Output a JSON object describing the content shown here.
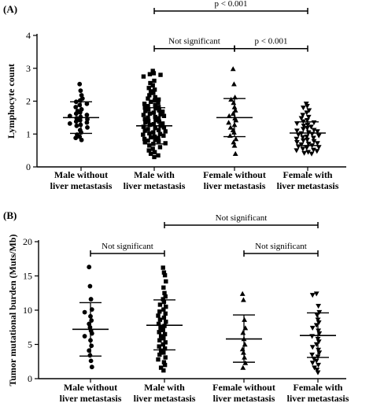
{
  "chart_data": [
    {
      "type": "scatter",
      "panel_label": "(A)",
      "ylabel": "Lymphocyte count",
      "ylim": [
        0,
        4
      ],
      "yticks": [
        0,
        1,
        2,
        3,
        4
      ],
      "grid": false,
      "categories": [
        [
          "Male without",
          "liver metastasis"
        ],
        [
          "Male with",
          "liver metastasis"
        ],
        [
          "Female without",
          "liver metastasis"
        ],
        [
          "Female with",
          "liver metastasis"
        ]
      ],
      "markers": [
        "circle",
        "square",
        "triangle-up",
        "triangle-down"
      ],
      "summary": [
        {
          "mean": 1.5,
          "sd_low": 1.02,
          "sd_high": 1.98
        },
        {
          "mean": 1.25,
          "sd_low": 0.7,
          "sd_high": 1.8
        },
        {
          "mean": 1.5,
          "sd_low": 0.92,
          "sd_high": 2.08
        },
        {
          "mean": 1.03,
          "sd_low": 0.65,
          "sd_high": 1.37
        }
      ],
      "series": [
        {
          "values": [
            2.52,
            2.32,
            2.18,
            2.08,
            2.02,
            1.98,
            1.92,
            1.88,
            1.82,
            1.75,
            1.7,
            1.66,
            1.62,
            1.58,
            1.55,
            1.52,
            1.48,
            1.45,
            1.42,
            1.38,
            1.35,
            1.32,
            1.28,
            1.25,
            1.2,
            1.12,
            1.05,
            0.98,
            0.92,
            0.88,
            0.82
          ]
        },
        {
          "values": [
            2.92,
            2.85,
            2.82,
            2.8,
            2.75,
            2.62,
            2.55,
            2.48,
            2.4,
            2.35,
            2.3,
            2.25,
            2.18,
            2.12,
            2.08,
            2.05,
            2.02,
            1.98,
            1.95,
            1.92,
            1.88,
            1.85,
            1.82,
            1.8,
            1.78,
            1.75,
            1.72,
            1.7,
            1.68,
            1.65,
            1.62,
            1.6,
            1.58,
            1.55,
            1.52,
            1.5,
            1.48,
            1.45,
            1.42,
            1.4,
            1.38,
            1.35,
            1.32,
            1.3,
            1.28,
            1.25,
            1.22,
            1.2,
            1.18,
            1.15,
            1.12,
            1.1,
            1.08,
            1.05,
            1.02,
            1.0,
            0.98,
            0.95,
            0.92,
            0.9,
            0.88,
            0.85,
            0.82,
            0.8,
            0.78,
            0.75,
            0.72,
            0.7,
            0.65,
            0.6,
            0.55,
            0.5,
            0.45,
            0.4,
            0.35,
            0.3
          ]
        },
        {
          "values": [
            2.98,
            2.52,
            2.12,
            2.05,
            1.95,
            1.82,
            1.72,
            1.62,
            1.55,
            1.48,
            1.42,
            1.35,
            1.28,
            1.2,
            1.12,
            1.05,
            0.95,
            0.85,
            0.75,
            0.65,
            0.4
          ]
        },
        {
          "values": [
            1.92,
            1.85,
            1.8,
            1.72,
            1.65,
            1.58,
            1.52,
            1.48,
            1.42,
            1.38,
            1.35,
            1.32,
            1.28,
            1.25,
            1.22,
            1.18,
            1.15,
            1.12,
            1.1,
            1.08,
            1.05,
            1.02,
            1.0,
            0.98,
            0.95,
            0.92,
            0.9,
            0.88,
            0.85,
            0.82,
            0.8,
            0.78,
            0.75,
            0.72,
            0.7,
            0.68,
            0.65,
            0.62,
            0.6,
            0.58,
            0.55,
            0.52,
            0.5,
            0.48,
            0.45,
            0.42,
            0.4
          ]
        }
      ],
      "annotations": [
        {
          "from": 2,
          "to": 3,
          "level": 3.6,
          "text": "Not significant"
        },
        {
          "from": 3,
          "to": 4,
          "level": 3.6,
          "text": "p < 0.001"
        },
        {
          "from": 2,
          "to": 4,
          "level": 4.3,
          "text": "p < 0.001"
        }
      ]
    },
    {
      "type": "scatter",
      "panel_label": "(B)",
      "ylabel": "Tumor mutational burden (Muts/Mb)",
      "ylim": [
        0,
        20
      ],
      "yticks": [
        0,
        5,
        10,
        15,
        20
      ],
      "grid": false,
      "categories": [
        [
          "Male without",
          "liver metastasis"
        ],
        [
          "Male with",
          "liver metastasis"
        ],
        [
          "Female without",
          "liver metastasis"
        ],
        [
          "Female with",
          "liver metastasis"
        ]
      ],
      "markers": [
        "circle",
        "square",
        "triangle-up",
        "triangle-down"
      ],
      "summary": [
        {
          "mean": 7.2,
          "sd_low": 3.3,
          "sd_high": 11.1
        },
        {
          "mean": 7.8,
          "sd_low": 4.2,
          "sd_high": 11.5
        },
        {
          "mean": 5.8,
          "sd_low": 2.4,
          "sd_high": 9.3
        },
        {
          "mean": 6.3,
          "sd_low": 3.1,
          "sd_high": 9.6
        }
      ],
      "series": [
        {
          "values": [
            16.3,
            13.5,
            11.6,
            10.1,
            9.7,
            9.1,
            8.5,
            8.0,
            7.5,
            7.0,
            6.6,
            6.2,
            5.6,
            4.8,
            4.1,
            3.4,
            2.6,
            1.7
          ]
        },
        {
          "values": [
            16.2,
            15.5,
            15.1,
            14.2,
            13.3,
            12.5,
            12.0,
            11.6,
            11.2,
            10.8,
            10.5,
            10.1,
            9.8,
            9.5,
            9.2,
            8.9,
            8.6,
            8.3,
            8.0,
            7.7,
            7.4,
            7.1,
            6.8,
            6.5,
            6.2,
            5.9,
            5.6,
            5.3,
            5.0,
            4.7,
            4.4,
            4.1,
            3.8,
            3.5,
            3.1,
            2.8,
            2.4,
            2.0,
            1.6,
            1.2
          ]
        },
        {
          "values": [
            12.4,
            11.5,
            8.6,
            7.4,
            6.7,
            5.8,
            5.0,
            4.3,
            3.8,
            3.1,
            2.3,
            1.6
          ]
        },
        {
          "values": [
            12.4,
            12.2,
            10.6,
            9.7,
            9.3,
            8.6,
            8.2,
            7.8,
            7.4,
            7.0,
            6.6,
            6.2,
            5.8,
            5.4,
            5.0,
            4.6,
            4.2,
            3.8,
            3.5,
            3.2,
            2.9,
            2.6,
            2.3,
            2.0,
            1.6,
            1.3,
            0.9
          ]
        }
      ],
      "annotations": [
        {
          "from": 1,
          "to": 2,
          "level": 19.3,
          "text": "Not significant"
        },
        {
          "from": 3,
          "to": 4,
          "level": 14.6,
          "text": "Not significant"
        },
        {
          "from": 1,
          "to": 2,
          "level": 14.6,
          "text": "Not significant"
        }
      ]
    }
  ]
}
